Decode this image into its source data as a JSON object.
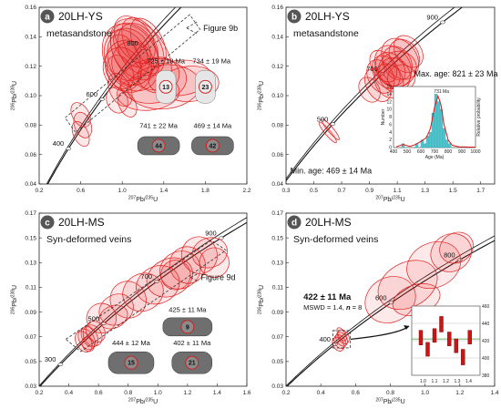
{
  "figure": {
    "background": "#ffffff",
    "ellipse_color": "#e02020",
    "badge_color": "#555555",
    "histogram_color": "#52c6cf",
    "pdf_color": "#d81818",
    "mean_line_color": "#3a9a3a"
  },
  "chart_data": [
    {
      "type": "scatter",
      "subtype": "concordia",
      "panel_letter": "a",
      "panel_name": "20LH-YS",
      "subtitle": "metasandstone",
      "xlabel": {
        "sup1": "207",
        "base1": "Pb/",
        "sup2": "235",
        "base2": "U"
      },
      "ylabel": {
        "sup1": "206",
        "base1": "Pb/",
        "sup2": "238",
        "base2": "U"
      },
      "xlim": [
        0.2,
        2.2
      ],
      "ylim": [
        0.04,
        0.16
      ],
      "xticks": [
        "0.2",
        "0.6",
        "1.0",
        "1.4",
        "1.8",
        "2.2"
      ],
      "yticks": [
        "0.04",
        "0.06",
        "0.08",
        "0.10",
        "0.12",
        "0.14",
        "0.16"
      ],
      "concordia_ages": [
        "400",
        "600",
        "800"
      ],
      "figure_ref": "Figure 9b",
      "grain_ages": [
        {
          "label": "725 ± 19 Ma",
          "spot": "13"
        },
        {
          "label": "734 ± 19 Ma",
          "spot": "23"
        },
        {
          "label": "741 ± 22 Ma",
          "spot": "44"
        },
        {
          "label": "469 ± 14 Ma",
          "spot": "42"
        }
      ],
      "ellipses": [
        {
          "x": 1.05,
          "y": 0.128,
          "rx": 0.22,
          "ry": 0.006,
          "rot": -20
        },
        {
          "x": 1.08,
          "y": 0.126,
          "rx": 0.25,
          "ry": 0.008,
          "rot": -28
        },
        {
          "x": 1.12,
          "y": 0.13,
          "rx": 0.2,
          "ry": 0.007,
          "rot": -32
        },
        {
          "x": 1.15,
          "y": 0.132,
          "rx": 0.18,
          "ry": 0.006,
          "rot": -25
        },
        {
          "x": 1.02,
          "y": 0.124,
          "rx": 0.15,
          "ry": 0.006,
          "rot": -18
        },
        {
          "x": 1.1,
          "y": 0.122,
          "rx": 0.2,
          "ry": 0.005,
          "rot": -15
        },
        {
          "x": 1.2,
          "y": 0.134,
          "rx": 0.16,
          "ry": 0.007,
          "rot": -30
        },
        {
          "x": 1.06,
          "y": 0.12,
          "rx": 0.22,
          "ry": 0.006,
          "rot": -22
        },
        {
          "x": 1.18,
          "y": 0.128,
          "rx": 0.24,
          "ry": 0.009,
          "rot": -35
        },
        {
          "x": 1.0,
          "y": 0.118,
          "rx": 0.18,
          "ry": 0.005,
          "rot": -20
        },
        {
          "x": 1.25,
          "y": 0.136,
          "rx": 0.14,
          "ry": 0.006,
          "rot": -28
        },
        {
          "x": 1.08,
          "y": 0.132,
          "rx": 0.12,
          "ry": 0.005,
          "rot": -40
        },
        {
          "x": 1.12,
          "y": 0.138,
          "rx": 0.16,
          "ry": 0.006,
          "rot": -35
        },
        {
          "x": 1.3,
          "y": 0.11,
          "rx": 0.32,
          "ry": 0.005,
          "rot": -8
        },
        {
          "x": 1.4,
          "y": 0.106,
          "rx": 0.35,
          "ry": 0.005,
          "rot": -5
        },
        {
          "x": 1.25,
          "y": 0.102,
          "rx": 0.3,
          "ry": 0.004,
          "rot": -4
        },
        {
          "x": 1.55,
          "y": 0.112,
          "rx": 0.3,
          "ry": 0.004,
          "rot": -6
        },
        {
          "x": 1.65,
          "y": 0.108,
          "rx": 0.28,
          "ry": 0.004,
          "rot": -4
        },
        {
          "x": 1.35,
          "y": 0.114,
          "rx": 0.2,
          "ry": 0.004,
          "rot": -8
        },
        {
          "x": 0.98,
          "y": 0.116,
          "rx": 0.12,
          "ry": 0.004,
          "rot": -25
        },
        {
          "x": 0.6,
          "y": 0.087,
          "rx": 0.08,
          "ry": 0.003,
          "rot": -30
        },
        {
          "x": 0.62,
          "y": 0.08,
          "rx": 0.08,
          "ry": 0.003,
          "rot": -20
        },
        {
          "x": 0.6,
          "y": 0.074,
          "rx": 0.07,
          "ry": 0.003,
          "rot": -25
        },
        {
          "x": 0.95,
          "y": 0.097,
          "rx": 0.1,
          "ry": 0.003,
          "rot": -20
        },
        {
          "x": 1.05,
          "y": 0.094,
          "rx": 0.08,
          "ry": 0.003,
          "rot": -25
        },
        {
          "x": 0.98,
          "y": 0.104,
          "rx": 0.1,
          "ry": 0.004,
          "rot": -25
        }
      ]
    },
    {
      "type": "scatter",
      "subtype": "concordia",
      "panel_letter": "b",
      "panel_name": "20LH-YS",
      "subtitle": "metasandstone",
      "xlabel": {
        "sup1": "207",
        "base1": "Pb/",
        "sup2": "235",
        "base2": "U"
      },
      "ylabel": {
        "sup1": "206",
        "base1": "Pb/",
        "sup2": "238",
        "base2": "U"
      },
      "xlim": [
        0.3,
        1.8
      ],
      "ylim": [
        0.04,
        0.16
      ],
      "xticks": [
        "0.3",
        "0.5",
        "0.7",
        "0.9",
        "1.1",
        "1.3",
        "1.5",
        "1.7"
      ],
      "yticks": [
        "0.04",
        "0.06",
        "0.08",
        "0.10",
        "0.12",
        "0.14",
        "0.16"
      ],
      "concordia_ages": [
        "500",
        "700",
        "900"
      ],
      "max_age": "Max. age: 821 ± 23 Ma",
      "min_age": "Min. age: 469 ± 14 Ma",
      "ellipses": [
        {
          "x": 1.05,
          "y": 0.118,
          "rx": 0.1,
          "ry": 0.004,
          "rot": -30
        },
        {
          "x": 1.07,
          "y": 0.12,
          "rx": 0.12,
          "ry": 0.005,
          "rot": -32
        },
        {
          "x": 1.1,
          "y": 0.122,
          "rx": 0.1,
          "ry": 0.004,
          "rot": -28
        },
        {
          "x": 1.02,
          "y": 0.116,
          "rx": 0.09,
          "ry": 0.004,
          "rot": -30
        },
        {
          "x": 1.12,
          "y": 0.125,
          "rx": 0.12,
          "ry": 0.005,
          "rot": -35
        },
        {
          "x": 1.08,
          "y": 0.114,
          "rx": 0.11,
          "ry": 0.004,
          "rot": -25
        },
        {
          "x": 0.98,
          "y": 0.113,
          "rx": 0.09,
          "ry": 0.004,
          "rot": -28
        },
        {
          "x": 1.15,
          "y": 0.127,
          "rx": 0.1,
          "ry": 0.004,
          "rot": -35
        },
        {
          "x": 1.04,
          "y": 0.11,
          "rx": 0.1,
          "ry": 0.004,
          "rot": -25
        },
        {
          "x": 0.96,
          "y": 0.107,
          "rx": 0.08,
          "ry": 0.004,
          "rot": -30
        },
        {
          "x": 1.1,
          "y": 0.118,
          "rx": 0.14,
          "ry": 0.004,
          "rot": -22
        },
        {
          "x": 1.0,
          "y": 0.12,
          "rx": 0.08,
          "ry": 0.004,
          "rot": -35
        },
        {
          "x": 1.18,
          "y": 0.13,
          "rx": 0.09,
          "ry": 0.004,
          "rot": -38
        },
        {
          "x": 0.9,
          "y": 0.104,
          "rx": 0.07,
          "ry": 0.003,
          "rot": -30
        },
        {
          "x": 1.13,
          "y": 0.112,
          "rx": 0.1,
          "ry": 0.003,
          "rot": -20
        },
        {
          "x": 0.62,
          "y": 0.077,
          "rx": 0.02,
          "ry": 0.003,
          "rot": -40
        },
        {
          "x": 0.6,
          "y": 0.075,
          "rx": 0.02,
          "ry": 0.003,
          "rot": -40
        }
      ],
      "inset": {
        "type": "bar",
        "xlabel": "Age (Ma)",
        "ylabel": "Number",
        "y2label": "Relative probability",
        "peak_label": "731 Ma",
        "xlim": [
          400,
          1000
        ],
        "ylim": [
          0,
          16
        ],
        "xticks": [
          "400",
          "500",
          "600",
          "700",
          "800",
          "900",
          "1000"
        ],
        "yticks": [
          "0",
          "2",
          "4",
          "6",
          "8",
          "10",
          "12",
          "14",
          "16"
        ],
        "bins": [
          {
            "start": 460,
            "end": 480,
            "count": 1
          },
          {
            "start": 560,
            "end": 580,
            "count": 1
          },
          {
            "start": 600,
            "end": 620,
            "count": 2
          },
          {
            "start": 620,
            "end": 640,
            "count": 1
          },
          {
            "start": 640,
            "end": 660,
            "count": 3
          },
          {
            "start": 660,
            "end": 680,
            "count": 4
          },
          {
            "start": 680,
            "end": 700,
            "count": 9
          },
          {
            "start": 700,
            "end": 720,
            "count": 14
          },
          {
            "start": 720,
            "end": 740,
            "count": 12
          },
          {
            "start": 740,
            "end": 760,
            "count": 10
          },
          {
            "start": 760,
            "end": 780,
            "count": 5
          },
          {
            "start": 780,
            "end": 800,
            "count": 2
          },
          {
            "start": 800,
            "end": 820,
            "count": 1
          }
        ],
        "pdf": [
          [
            420,
            0.2
          ],
          [
            470,
            0.8
          ],
          [
            520,
            0.3
          ],
          [
            560,
            0.8
          ],
          [
            600,
            1.6
          ],
          [
            640,
            2.6
          ],
          [
            670,
            5
          ],
          [
            700,
            10.5
          ],
          [
            725,
            13.5
          ],
          [
            745,
            11.5
          ],
          [
            770,
            6
          ],
          [
            800,
            2
          ],
          [
            830,
            0.6
          ],
          [
            880,
            0.2
          ],
          [
            1000,
            0.1
          ]
        ]
      }
    },
    {
      "type": "scatter",
      "subtype": "concordia",
      "panel_letter": "c",
      "panel_name": "20LH-MS",
      "subtitle": "Syn-deformed veins",
      "xlabel": {
        "sup1": "207",
        "base1": "Pb/",
        "sup2": "235",
        "base2": "U"
      },
      "ylabel": {
        "sup1": "206",
        "base1": "Pb/",
        "sup2": "238",
        "base2": "U"
      },
      "xlim": [
        0.2,
        1.6
      ],
      "ylim": [
        0.03,
        0.17
      ],
      "xticks": [
        "0.2",
        "0.4",
        "0.6",
        "0.8",
        "1.0",
        "1.2",
        "1.4",
        "1.6"
      ],
      "yticks": [
        "0.03",
        "0.05",
        "0.07",
        "0.09",
        "0.11",
        "0.13",
        "0.15",
        "0.17"
      ],
      "concordia_ages": [
        "300",
        "500",
        "700",
        "900"
      ],
      "figure_ref": "Figure 9d",
      "grain_ages": [
        {
          "label": "425 ± 11 Ma",
          "spot": "9"
        },
        {
          "label": "444 ± 12 Ma",
          "spot": "15"
        },
        {
          "label": "402 ± 11 Ma",
          "spot": "21"
        }
      ],
      "ellipses": [
        {
          "x": 0.52,
          "y": 0.068,
          "rx": 0.05,
          "ry": 0.003,
          "rot": -30
        },
        {
          "x": 0.54,
          "y": 0.07,
          "rx": 0.05,
          "ry": 0.003,
          "rot": -30
        },
        {
          "x": 0.5,
          "y": 0.066,
          "rx": 0.05,
          "ry": 0.003,
          "rot": -30
        },
        {
          "x": 0.56,
          "y": 0.071,
          "rx": 0.06,
          "ry": 0.003,
          "rot": -30
        },
        {
          "x": 0.53,
          "y": 0.064,
          "rx": 0.04,
          "ry": 0.002,
          "rot": -25
        },
        {
          "x": 0.58,
          "y": 0.074,
          "rx": 0.06,
          "ry": 0.003,
          "rot": -32
        },
        {
          "x": 0.62,
          "y": 0.085,
          "rx": 0.1,
          "ry": 0.004,
          "rot": -30
        },
        {
          "x": 0.72,
          "y": 0.092,
          "rx": 0.12,
          "ry": 0.004,
          "rot": -30
        },
        {
          "x": 0.8,
          "y": 0.1,
          "rx": 0.12,
          "ry": 0.005,
          "rot": -28
        },
        {
          "x": 0.9,
          "y": 0.106,
          "rx": 0.14,
          "ry": 0.005,
          "rot": -28
        },
        {
          "x": 1.0,
          "y": 0.112,
          "rx": 0.15,
          "ry": 0.005,
          "rot": -25
        },
        {
          "x": 1.08,
          "y": 0.118,
          "rx": 0.16,
          "ry": 0.005,
          "rot": -25
        },
        {
          "x": 1.15,
          "y": 0.124,
          "rx": 0.14,
          "ry": 0.005,
          "rot": -25
        },
        {
          "x": 1.2,
          "y": 0.128,
          "rx": 0.12,
          "ry": 0.005,
          "rot": -25
        },
        {
          "x": 1.28,
          "y": 0.136,
          "rx": 0.12,
          "ry": 0.005,
          "rot": -22
        },
        {
          "x": 1.35,
          "y": 0.138,
          "rx": 0.12,
          "ry": 0.004,
          "rot": -18
        },
        {
          "x": 1.38,
          "y": 0.13,
          "rx": 0.1,
          "ry": 0.004,
          "rot": -15
        },
        {
          "x": 1.12,
          "y": 0.12,
          "rx": 0.1,
          "ry": 0.004,
          "rot": -25
        },
        {
          "x": 0.7,
          "y": 0.086,
          "rx": 0.1,
          "ry": 0.003,
          "rot": -25
        }
      ]
    },
    {
      "type": "scatter",
      "subtype": "concordia",
      "panel_letter": "d",
      "panel_name": "20LH-MS",
      "subtitle": "Syn-deformed veins",
      "xlabel": {
        "sup1": "207",
        "base1": "Pb/",
        "sup2": "235",
        "base2": "U"
      },
      "ylabel": {
        "sup1": "206",
        "base1": "Pb/",
        "sup2": "238",
        "base2": "U"
      },
      "xlim": [
        0.2,
        1.4
      ],
      "ylim": [
        0.03,
        0.17
      ],
      "xticks": [
        "0.2",
        "0.4",
        "0.6",
        "0.8",
        "1.0",
        "1.2",
        "1.4"
      ],
      "yticks": [
        "0.03",
        "0.05",
        "0.07",
        "0.09",
        "0.11",
        "0.13",
        "0.15",
        "0.17"
      ],
      "concordia_ages": [
        "400",
        "600",
        "800"
      ],
      "weighted_mean": "422 ± 11 Ma",
      "mswd_prefix": "MSWD = 1.4, ",
      "n_symbol": "n",
      "n_value": " = 8",
      "ellipses": [
        {
          "x": 0.52,
          "y": 0.068,
          "rx": 0.03,
          "ry": 0.002,
          "rot": -30
        },
        {
          "x": 0.51,
          "y": 0.066,
          "rx": 0.03,
          "ry": 0.002,
          "rot": -30
        },
        {
          "x": 0.53,
          "y": 0.07,
          "rx": 0.03,
          "ry": 0.002,
          "rot": -30
        },
        {
          "x": 0.5,
          "y": 0.064,
          "rx": 0.03,
          "ry": 0.002,
          "rot": -30
        },
        {
          "x": 0.52,
          "y": 0.072,
          "rx": 0.02,
          "ry": 0.002,
          "rot": -30
        },
        {
          "x": 0.8,
          "y": 0.1,
          "rx": 0.15,
          "ry": 0.006,
          "rot": -30
        },
        {
          "x": 0.9,
          "y": 0.112,
          "rx": 0.18,
          "ry": 0.006,
          "rot": -28
        },
        {
          "x": 1.05,
          "y": 0.128,
          "rx": 0.16,
          "ry": 0.006,
          "rot": -25
        },
        {
          "x": 1.15,
          "y": 0.138,
          "rx": 0.12,
          "ry": 0.005,
          "rot": -28
        },
        {
          "x": 1.18,
          "y": 0.142,
          "rx": 0.1,
          "ry": 0.004,
          "rot": -30
        },
        {
          "x": 0.95,
          "y": 0.1,
          "rx": 0.14,
          "ry": 0.004,
          "rot": -18
        }
      ],
      "inset": {
        "type": "bar",
        "xlim": [
          0.9,
          1.5
        ],
        "ylim": [
          380,
          460
        ],
        "yticks": [
          "380",
          "400",
          "420",
          "440",
          "460"
        ],
        "xticks": [
          "1.0",
          "1.1",
          "1.2",
          "1.3",
          "1.4"
        ],
        "mean": 422,
        "bars": [
          {
            "x": 0.98,
            "lo": 415,
            "hi": 432
          },
          {
            "x": 1.04,
            "lo": 402,
            "hi": 418
          },
          {
            "x": 1.1,
            "lo": 418,
            "hi": 434
          },
          {
            "x": 1.16,
            "lo": 430,
            "hi": 448
          },
          {
            "x": 1.23,
            "lo": 414,
            "hi": 430
          },
          {
            "x": 1.29,
            "lo": 406,
            "hi": 422
          },
          {
            "x": 1.35,
            "lo": 392,
            "hi": 410
          },
          {
            "x": 1.41,
            "lo": 416,
            "hi": 432
          }
        ]
      }
    }
  ]
}
